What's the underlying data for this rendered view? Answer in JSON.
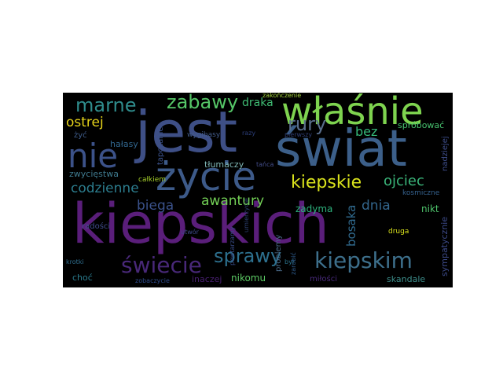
{
  "cloud": {
    "background": "#000000",
    "words": [
      {
        "text": "kiepskich",
        "color": "#5a1e7a"
      },
      {
        "text": "jest",
        "color": "#3e4f86"
      },
      {
        "text": "świat",
        "color": "#3c5f89"
      },
      {
        "text": "życie",
        "color": "#3d5a89"
      },
      {
        "text": "właśnie",
        "color": "#7ed34f"
      },
      {
        "text": "nie",
        "color": "#3c5289"
      },
      {
        "text": "marne",
        "color": "#2f8c8c"
      },
      {
        "text": "zabawy",
        "color": "#55c667"
      },
      {
        "text": "rury",
        "color": "#5a6e8c"
      },
      {
        "text": "ostrej",
        "color": "#e6d31a"
      },
      {
        "text": "bez",
        "color": "#35b779"
      },
      {
        "text": "draka",
        "color": "#3fbc73"
      },
      {
        "text": "spróbować",
        "color": "#47c16e"
      },
      {
        "text": "kiepskie",
        "color": "#d9e21c"
      },
      {
        "text": "ojciec",
        "color": "#3ab57a"
      },
      {
        "text": "codzienne",
        "color": "#2c7d8e"
      },
      {
        "text": "biega",
        "color": "#3b528b"
      },
      {
        "text": "awantury",
        "color": "#73d056"
      },
      {
        "text": "dnia",
        "color": "#33668d"
      },
      {
        "text": "zadyma",
        "color": "#2db27d"
      },
      {
        "text": "nikt",
        "color": "#4ec36b"
      },
      {
        "text": "sprawy",
        "color": "#2d708e"
      },
      {
        "text": "kiepskim",
        "color": "#3d6f8b"
      },
      {
        "text": "świecie",
        "color": "#482878"
      },
      {
        "text": "nikomu",
        "color": "#5bc863"
      },
      {
        "text": "inaczej",
        "color": "#481f70"
      },
      {
        "text": "skandale",
        "color": "#3d8d8a"
      },
      {
        "text": "miłości",
        "color": "#48297a"
      },
      {
        "text": "choć",
        "color": "#2a7b8e"
      },
      {
        "text": "radości",
        "color": "#3f4c8a"
      },
      {
        "text": "zwycięstwa",
        "color": "#3f7a8f"
      },
      {
        "text": "całkiem",
        "color": "#a3cc2a"
      },
      {
        "text": "tłumaczy",
        "color": "#7fb6b4"
      },
      {
        "text": "tańca",
        "color": "#434d89"
      },
      {
        "text": "hałasy",
        "color": "#31668e"
      },
      {
        "text": "żyć",
        "color": "#405d8b"
      },
      {
        "text": "tapczanie",
        "color": "#3b528b"
      },
      {
        "text": "wygibasy",
        "color": "#435c8b"
      },
      {
        "text": "zakończenie",
        "color": "#a2d03c"
      },
      {
        "text": "bosaka",
        "color": "#306a8e"
      },
      {
        "text": "problemy",
        "color": "#4a6b8a"
      },
      {
        "text": "umierzycie",
        "color": "#2c3f6e"
      },
      {
        "text": "utwór",
        "color": "#3e4a89"
      },
      {
        "text": "powtarzamy",
        "color": "#3a4d8a"
      },
      {
        "text": "był",
        "color": "#2b748e"
      },
      {
        "text": "zobaczycie",
        "color": "#2e4b8c"
      },
      {
        "text": "krotki",
        "color": "#2e6d8e"
      },
      {
        "text": "druga",
        "color": "#d9e21c"
      },
      {
        "text": "sympatycznie",
        "color": "#3d4b8a"
      },
      {
        "text": "kosmiczne",
        "color": "#35618d"
      },
      {
        "text": "nadziejej",
        "color": "#3e4e8b"
      },
      {
        "text": "pierwszy",
        "color": "#2f3e74"
      },
      {
        "text": "razy",
        "color": "#2b3d78"
      },
      {
        "text": "zarobić",
        "color": "#2d5a8a"
      }
    ]
  }
}
